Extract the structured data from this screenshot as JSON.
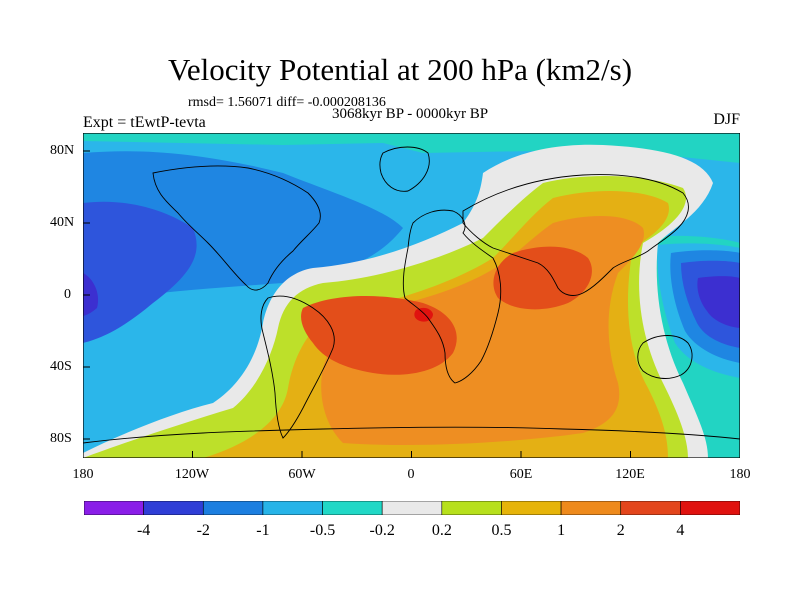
{
  "header": {
    "title": "Velocity Potential at 200 hPa (km2/s)",
    "stats": "rmsd= 1.56071 diff= -0.000208136",
    "period": "3068kyr BP - 0000kyr BP",
    "experiment": "Expt = tEwtP-tevta",
    "season": "DJF"
  },
  "axes": {
    "y_ticks": [
      "80N",
      "40N",
      "0",
      "40S",
      "80S"
    ],
    "x_ticks": [
      "180",
      "120W",
      "60W",
      "0",
      "60E",
      "120E",
      "180"
    ]
  },
  "colorbar": {
    "labels": [
      "-4",
      "-2",
      "-1",
      "-0.5",
      "-0.2",
      "0.2",
      "0.5",
      "1",
      "2",
      "4"
    ],
    "colors": [
      "#8a1ee8",
      "#2f3ed6",
      "#1c7fe0",
      "#27b4e8",
      "#21d8c6",
      "#e9e9e9",
      "#b7e01c",
      "#e6b40a",
      "#ee8a1c",
      "#e3461c",
      "#e0120f"
    ]
  },
  "colors": {
    "c_m4": "#3c2fd0",
    "c_m2": "#2e55dc",
    "c_m1": "#1f86e2",
    "c_m05": "#2bb6ea",
    "c_m02": "#22d4c3",
    "c_p02": "#e9e9e9",
    "c_p05": "#bde02a",
    "c_p1": "#e4b014",
    "c_p2": "#ee8e22",
    "c_p4": "#e34e1a",
    "c_max": "#e0120f"
  }
}
